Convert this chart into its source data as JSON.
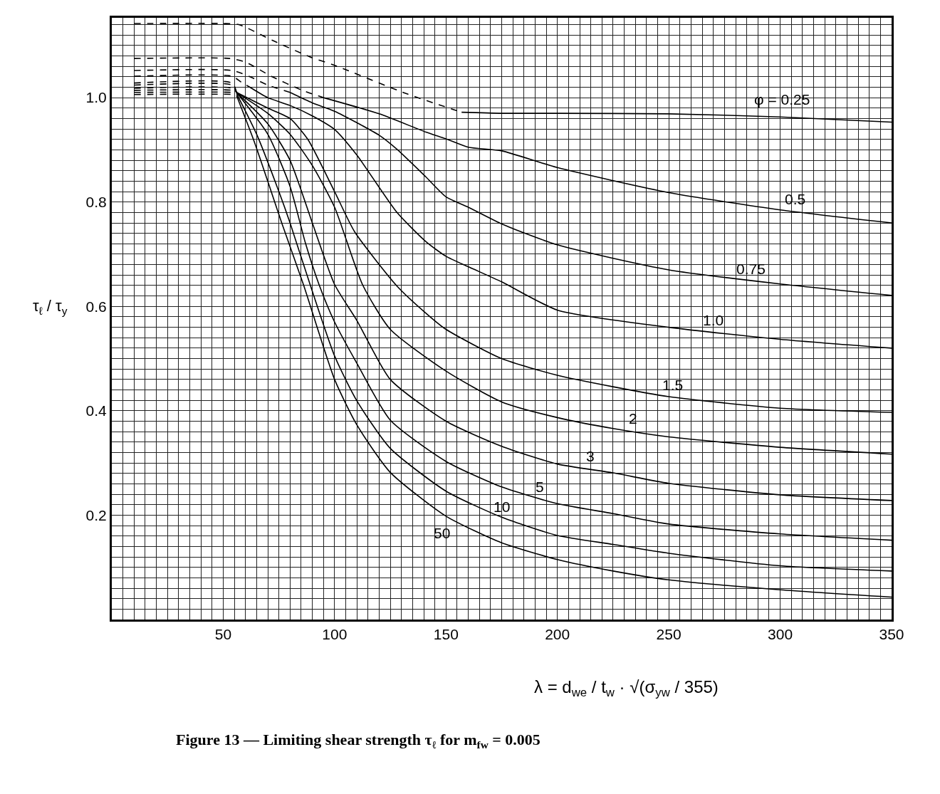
{
  "chart_data": {
    "type": "line",
    "title": "Figure 13 — Limiting shear strength τ$_{ℓ}$ for m$_{fw}$ = 0.005",
    "xlabel": "λ = d$_{we}$ / t$_{w}$ · √(σ$_{yw}$ / 355)",
    "ylabel": "τ$_{ℓ}$ / τ$_{y}$",
    "xlim": [
      0,
      350
    ],
    "ylim": [
      0,
      1.153
    ],
    "xticks": [
      {
        "value": 5,
        "label": null
      },
      {
        "value": 10,
        "label": null
      },
      {
        "value": 15,
        "label": null
      },
      {
        "value": 20,
        "label": null
      },
      {
        "value": 25,
        "label": null
      },
      {
        "value": 30,
        "label": null
      },
      {
        "value": 35,
        "label": null
      },
      {
        "value": 40,
        "label": null
      },
      {
        "value": 45,
        "label": null
      },
      50,
      {
        "value": 55,
        "label": null
      },
      {
        "value": 60,
        "label": null
      },
      {
        "value": 65,
        "label": null
      },
      {
        "value": 70,
        "label": null
      },
      {
        "value": 75,
        "label": null
      },
      {
        "value": 80,
        "label": null
      },
      {
        "value": 85,
        "label": null
      },
      {
        "value": 90,
        "label": null
      },
      {
        "value": 95,
        "label": null
      },
      100,
      {
        "value": 105,
        "label": null
      },
      {
        "value": 110,
        "label": null
      },
      {
        "value": 115,
        "label": null
      },
      {
        "value": 120,
        "label": null
      },
      {
        "value": 125,
        "label": null
      },
      {
        "value": 130,
        "label": null
      },
      {
        "value": 135,
        "label": null
      },
      {
        "value": 140,
        "label": null
      },
      {
        "value": 145,
        "label": null
      },
      150,
      {
        "value": 155,
        "label": null
      },
      {
        "value": 160,
        "label": null
      },
      {
        "value": 165,
        "label": null
      },
      {
        "value": 170,
        "label": null
      },
      {
        "value": 175,
        "label": null
      },
      {
        "value": 180,
        "label": null
      },
      {
        "value": 185,
        "label": null
      },
      {
        "value": 190,
        "label": null
      },
      {
        "value": 195,
        "label": null
      },
      200,
      {
        "value": 205,
        "label": null
      },
      {
        "value": 210,
        "label": null
      },
      {
        "value": 215,
        "label": null
      },
      {
        "value": 220,
        "label": null
      },
      {
        "value": 225,
        "label": null
      },
      {
        "value": 230,
        "label": null
      },
      {
        "value": 235,
        "label": null
      },
      {
        "value": 240,
        "label": null
      },
      {
        "value": 245,
        "label": null
      },
      250,
      {
        "value": 255,
        "label": null
      },
      {
        "value": 260,
        "label": null
      },
      {
        "value": 265,
        "label": null
      },
      {
        "value": 270,
        "label": null
      },
      {
        "value": 275,
        "label": null
      },
      {
        "value": 280,
        "label": null
      },
      {
        "value": 285,
        "label": null
      },
      {
        "value": 290,
        "label": null
      },
      {
        "value": 295,
        "label": null
      },
      300,
      {
        "value": 305,
        "label": null
      },
      {
        "value": 310,
        "label": null
      },
      {
        "value": 315,
        "label": null
      },
      {
        "value": 320,
        "label": null
      },
      {
        "value": 325,
        "label": null
      },
      {
        "value": 330,
        "label": null
      },
      {
        "value": 335,
        "label": null
      },
      {
        "value": 340,
        "label": null
      },
      {
        "value": 345,
        "label": null
      },
      350
    ],
    "yticks": [
      {
        "value": 0.02,
        "label": null
      },
      {
        "value": 0.04,
        "label": null
      },
      {
        "value": 0.06,
        "label": null
      },
      {
        "value": 0.08,
        "label": null
      },
      {
        "value": 0.1,
        "label": null
      },
      {
        "value": 0.12,
        "label": null
      },
      {
        "value": 0.14,
        "label": null
      },
      {
        "value": 0.16,
        "label": null
      },
      {
        "value": 0.18,
        "label": null
      },
      0.2,
      {
        "value": 0.22,
        "label": null
      },
      {
        "value": 0.24,
        "label": null
      },
      {
        "value": 0.26,
        "label": null
      },
      {
        "value": 0.28,
        "label": null
      },
      {
        "value": 0.3,
        "label": null
      },
      {
        "value": 0.32,
        "label": null
      },
      {
        "value": 0.34,
        "label": null
      },
      {
        "value": 0.36,
        "label": null
      },
      {
        "value": 0.38,
        "label": null
      },
      0.4,
      {
        "value": 0.42,
        "label": null
      },
      {
        "value": 0.44,
        "label": null
      },
      {
        "value": 0.46,
        "label": null
      },
      {
        "value": 0.48,
        "label": null
      },
      {
        "value": 0.5,
        "label": null
      },
      {
        "value": 0.52,
        "label": null
      },
      {
        "value": 0.54,
        "label": null
      },
      {
        "value": 0.56,
        "label": null
      },
      {
        "value": 0.58,
        "label": null
      },
      0.6,
      {
        "value": 0.62,
        "label": null
      },
      {
        "value": 0.64,
        "label": null
      },
      {
        "value": 0.66,
        "label": null
      },
      {
        "value": 0.68,
        "label": null
      },
      {
        "value": 0.7,
        "label": null
      },
      {
        "value": 0.72,
        "label": null
      },
      {
        "value": 0.74,
        "label": null
      },
      {
        "value": 0.76,
        "label": null
      },
      {
        "value": 0.78,
        "label": null
      },
      0.8,
      {
        "value": 0.82,
        "label": null
      },
      {
        "value": 0.84,
        "label": null
      },
      {
        "value": 0.86,
        "label": null
      },
      {
        "value": 0.88,
        "label": null
      },
      {
        "value": 0.9,
        "label": null
      },
      {
        "value": 0.92,
        "label": null
      },
      {
        "value": 0.94,
        "label": null
      },
      {
        "value": 0.96,
        "label": null
      },
      {
        "value": 0.98,
        "label": null
      },
      {
        "value": 1.0,
        "label": "1.0"
      },
      {
        "value": 1.02,
        "label": null
      },
      {
        "value": 1.04,
        "label": null
      },
      {
        "value": 1.06,
        "label": null
      },
      {
        "value": 1.08,
        "label": null
      },
      {
        "value": 1.1,
        "label": null
      },
      {
        "value": 1.12,
        "label": null
      },
      {
        "value": 1.14,
        "label": null
      }
    ],
    "grid": true,
    "series": [
      {
        "color": "#000000",
        "line_style": "dashed",
        "x": [
          10,
          50,
          57,
          72,
          89,
          100,
          132,
          157
        ],
        "values": [
          1.142,
          1.142,
          1.14,
          1.11,
          1.078,
          1.062,
          1.008,
          0.972
        ]
      },
      {
        "color": "#000000",
        "line_style": "solid",
        "x": [
          157,
          175,
          200,
          250,
          300,
          350
        ],
        "values": [
          0.972,
          0.97,
          0.97,
          0.969,
          0.963,
          0.953
        ]
      },
      {
        "color": "#000000",
        "line_style": "dashed",
        "x": [
          10,
          53,
          60,
          72,
          85,
          95
        ],
        "values": [
          1.075,
          1.075,
          1.068,
          1.04,
          1.015,
          1.0
        ]
      },
      {
        "color": "#000000",
        "line_style": "solid",
        "x": [
          95,
          120,
          141,
          150,
          160,
          175,
          200,
          250,
          300,
          350
        ],
        "values": [
          1.0,
          0.969,
          0.934,
          0.921,
          0.905,
          0.898,
          0.866,
          0.818,
          0.785,
          0.76
        ]
      },
      {
        "color": "#000000",
        "line_style": "dashed",
        "x": [
          10,
          54,
          62,
          70,
          80
        ],
        "values": [
          1.052,
          1.052,
          1.04,
          1.024,
          1.01
        ]
      },
      {
        "color": "#000000",
        "line_style": "solid",
        "x": [
          80,
          90,
          100,
          120,
          128,
          141,
          150,
          160,
          175,
          200,
          250,
          300,
          350
        ],
        "values": [
          1.01,
          0.99,
          0.974,
          0.928,
          0.901,
          0.848,
          0.81,
          0.79,
          0.758,
          0.718,
          0.67,
          0.643,
          0.621
        ]
      },
      {
        "color": "#000000",
        "line_style": "dashed",
        "x": [
          10,
          54,
          58,
          62
        ],
        "values": [
          1.041,
          1.041,
          1.03,
          1.02
        ]
      },
      {
        "color": "#000000",
        "line_style": "solid",
        "x": [
          62,
          70,
          80,
          90,
          100,
          110,
          128,
          141,
          150,
          160,
          175,
          200,
          250,
          300,
          350
        ],
        "values": [
          1.02,
          1.0,
          0.985,
          0.965,
          0.939,
          0.89,
          0.78,
          0.724,
          0.696,
          0.676,
          0.647,
          0.593,
          0.56,
          0.537,
          0.52
        ]
      },
      {
        "color": "#000000",
        "line_style": "dashed",
        "x": [
          10,
          54,
          56
        ],
        "values": [
          1.028,
          1.028,
          1.01
        ]
      },
      {
        "color": "#000000",
        "line_style": "solid",
        "x": [
          56,
          70,
          80,
          88,
          100,
          109,
          128,
          141,
          150,
          175,
          200,
          225,
          250,
          300,
          350
        ],
        "values": [
          1.01,
          0.98,
          0.96,
          0.92,
          0.82,
          0.743,
          0.639,
          0.587,
          0.556,
          0.5,
          0.468,
          0.446,
          0.427,
          0.405,
          0.397
        ]
      },
      {
        "color": "#000000",
        "line_style": "dashed",
        "x": [
          10,
          54,
          56
        ],
        "values": [
          1.024,
          1.024,
          1.01
        ]
      },
      {
        "color": "#000000",
        "line_style": "solid",
        "x": [
          56,
          70,
          80,
          90,
          100,
          112.5,
          125,
          150,
          175,
          200,
          225,
          250,
          300,
          350
        ],
        "values": [
          1.01,
          0.97,
          0.93,
          0.87,
          0.79,
          0.642,
          0.556,
          0.476,
          0.417,
          0.387,
          0.366,
          0.35,
          0.33,
          0.317
        ]
      },
      {
        "color": "#000000",
        "line_style": "dashed",
        "x": [
          10,
          54,
          56
        ],
        "values": [
          1.018,
          1.018,
          1.01
        ]
      },
      {
        "color": "#000000",
        "line_style": "solid",
        "x": [
          56,
          70,
          80,
          90,
          100,
          110,
          125,
          150,
          175,
          200,
          225,
          250,
          300,
          350
        ],
        "values": [
          1.01,
          0.95,
          0.88,
          0.76,
          0.642,
          0.573,
          0.46,
          0.38,
          0.332,
          0.298,
          0.281,
          0.261,
          0.239,
          0.228
        ]
      },
      {
        "color": "#000000",
        "line_style": "dashed",
        "x": [
          10,
          54,
          56
        ],
        "values": [
          1.014,
          1.014,
          1.01
        ]
      },
      {
        "color": "#000000",
        "line_style": "solid",
        "x": [
          56,
          70,
          80,
          87,
          93,
          100,
          110,
          125,
          150,
          175,
          200,
          225,
          250,
          300,
          350
        ],
        "values": [
          1.01,
          0.93,
          0.83,
          0.72,
          0.642,
          0.57,
          0.491,
          0.382,
          0.303,
          0.254,
          0.222,
          0.203,
          0.183,
          0.164,
          0.152
        ]
      },
      {
        "color": "#000000",
        "line_style": "dashed",
        "x": [
          10,
          54,
          56
        ],
        "values": [
          1.01,
          1.01,
          1.008
        ]
      },
      {
        "color": "#000000",
        "line_style": "solid",
        "x": [
          56,
          65,
          75,
          80,
          89,
          100,
          110,
          125,
          150,
          175,
          200,
          225,
          250,
          300,
          350
        ],
        "values": [
          1.008,
          0.93,
          0.82,
          0.76,
          0.642,
          0.505,
          0.419,
          0.328,
          0.246,
          0.196,
          0.161,
          0.144,
          0.127,
          0.103,
          0.093
        ]
      },
      {
        "color": "#000000",
        "line_style": "dashed",
        "x": [
          10,
          54,
          56
        ],
        "values": [
          1.006,
          1.006,
          1.004
        ]
      },
      {
        "color": "#000000",
        "line_style": "solid",
        "x": [
          56,
          64,
          77,
          86,
          100,
          110,
          125,
          150,
          175,
          200,
          225,
          250,
          300,
          350
        ],
        "values": [
          1.004,
          0.915,
          0.751,
          0.642,
          0.46,
          0.373,
          0.282,
          0.198,
          0.147,
          0.115,
          0.093,
          0.076,
          0.057,
          0.043
        ]
      }
    ],
    "annotations": [
      "φ = 0.25",
      "0.5",
      "0.75",
      "1.0",
      "1.5",
      "2",
      "3",
      "5",
      "10",
      "50"
    ]
  }
}
